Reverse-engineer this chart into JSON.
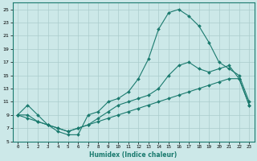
{
  "xlabel": "Humidex (Indice chaleur)",
  "xlim": [
    -0.5,
    23.5
  ],
  "ylim": [
    5,
    26
  ],
  "yticks": [
    5,
    7,
    9,
    11,
    13,
    15,
    17,
    19,
    21,
    23,
    25
  ],
  "xticks": [
    0,
    1,
    2,
    3,
    4,
    5,
    6,
    7,
    8,
    9,
    10,
    11,
    12,
    13,
    14,
    15,
    16,
    17,
    18,
    19,
    20,
    21,
    22,
    23
  ],
  "bg_color": "#cce8e8",
  "grid_color": "#aacccc",
  "line_color": "#1a7a6e",
  "line1_x": [
    0,
    1,
    2,
    3,
    4,
    5,
    6,
    7,
    8,
    9,
    10,
    11,
    12,
    13,
    14,
    15,
    16,
    17,
    18,
    19,
    20,
    21,
    22,
    23
  ],
  "line1_y": [
    9.0,
    10.5,
    9.0,
    7.5,
    6.5,
    6.0,
    6.0,
    9.0,
    9.5,
    11.0,
    11.5,
    12.5,
    14.5,
    17.5,
    22.0,
    24.5,
    25.0,
    24.0,
    22.5,
    20.0,
    17.0,
    16.0,
    15.0,
    11.0
  ],
  "line2_x": [
    0,
    1,
    2,
    3,
    4,
    5,
    6,
    7,
    8,
    9,
    10,
    11,
    12,
    13,
    14,
    15,
    16,
    17,
    18,
    19,
    20,
    21,
    22,
    23
  ],
  "line2_y": [
    9.0,
    9.0,
    8.0,
    7.5,
    7.0,
    6.5,
    7.0,
    7.5,
    8.5,
    9.5,
    10.5,
    11.0,
    11.5,
    12.0,
    13.0,
    15.0,
    16.5,
    17.0,
    16.0,
    15.5,
    16.0,
    16.5,
    14.5,
    10.5
  ],
  "line3_x": [
    0,
    1,
    2,
    3,
    4,
    5,
    6,
    7,
    8,
    9,
    10,
    11,
    12,
    13,
    14,
    15,
    16,
    17,
    18,
    19,
    20,
    21,
    22,
    23
  ],
  "line3_y": [
    9.0,
    8.5,
    8.0,
    7.5,
    7.0,
    6.5,
    7.0,
    7.5,
    8.0,
    8.5,
    9.0,
    9.5,
    10.0,
    10.5,
    11.0,
    11.5,
    12.0,
    12.5,
    13.0,
    13.5,
    14.0,
    14.5,
    14.5,
    10.5
  ],
  "marker": "D",
  "markersize": 2.0,
  "linewidth": 0.8
}
